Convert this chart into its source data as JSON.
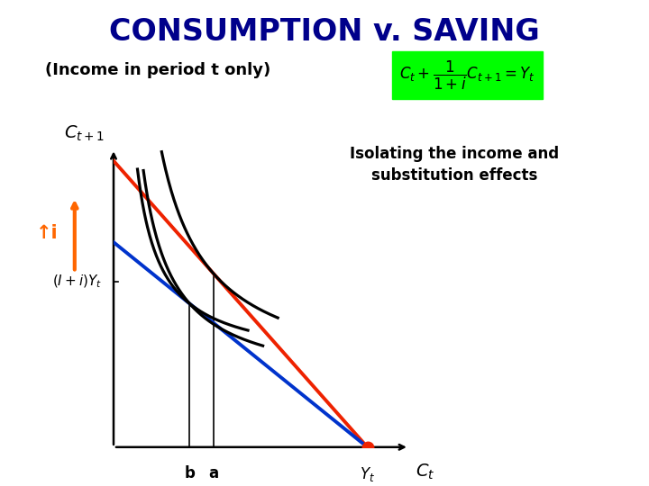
{
  "title": "CONSUMPTION v. SAVING",
  "subtitle": "(Income in period t only)",
  "bg_color": "#ffffff",
  "title_color": "#00008B",
  "subtitle_color": "#000000",
  "axis_label_ct1": "$C_{t+1}$",
  "axis_label_ct": "$C_t$",
  "ylabel_iyi": "$(I+i)Y_t$",
  "xlabel_b": "b",
  "xlabel_a": "a",
  "xlabel_yt": "$Y_t$",
  "red_line_color": "#EE2200",
  "blue_line_color": "#0033CC",
  "orange_arrow_color": "#FF6600",
  "xlim": [
    0,
    10
  ],
  "ylim": [
    0,
    10
  ],
  "red_y_intercept": 9.5,
  "blue_y_intercept": 6.8,
  "yt_x": 8.5,
  "iyi_y": 5.5,
  "b_x": 2.55,
  "a_x": 3.35
}
